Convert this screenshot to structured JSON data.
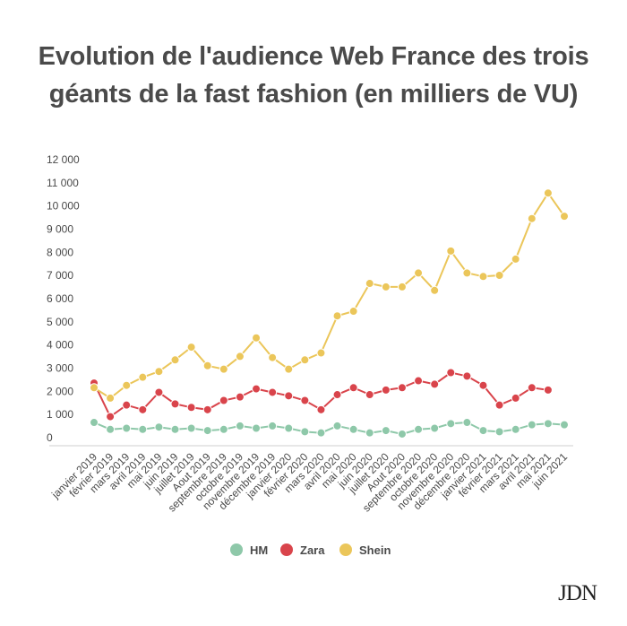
{
  "chart_data": {
    "type": "line",
    "title_lines": [
      "Evolution de l'audience Web France des trois",
      "géants de la fast fashion (en milliers de VU)"
    ],
    "categories": [
      "janvier 2019",
      "février 2019",
      "mars 2019",
      "avril 2019",
      "mai 2019",
      "juin 2019",
      "juillet 2019",
      "Aout 2019",
      "septembre 2019",
      "octobre 2019",
      "novembre 2019",
      "décembre 2019",
      "janvier 2020",
      "février 2020",
      "mars 2020",
      "avril 2020",
      "mai 2020",
      "juin 2020",
      "juillet 2020",
      "Aout 2020",
      "septembre 2020",
      "octobre 2020",
      "novembre 2020",
      "décembre 2020",
      "janvier 2021",
      "février 2021",
      "mars 2021",
      "avril 2021",
      "mai 2021",
      "juin 2021"
    ],
    "y_ticks": [
      "0",
      "1 000",
      "2 000",
      "3 000",
      "4 000",
      "5 000",
      "6 000",
      "7 000",
      "8 000",
      "9 000",
      "10 000",
      "11 000",
      "12 000"
    ],
    "ylim": [
      0,
      12000
    ],
    "grid": false,
    "legend_position": "bottom-center",
    "series": [
      {
        "name": "HM",
        "color": "#8ec8a9",
        "values": [
          850,
          550,
          600,
          550,
          650,
          550,
          600,
          500,
          550,
          700,
          600,
          700,
          600,
          450,
          400,
          700,
          550,
          400,
          500,
          350,
          550,
          600,
          800,
          850,
          500,
          450,
          550,
          750,
          800,
          750
        ]
      },
      {
        "name": "Zara",
        "color": "#d9444b",
        "values": [
          2550,
          1100,
          1600,
          1400,
          2150,
          1650,
          1500,
          1400,
          1800,
          1950,
          2300,
          2150,
          2000,
          1800,
          1400,
          2050,
          2350,
          2050,
          2250,
          2350,
          2650,
          2500,
          3000,
          2850,
          2450,
          1600,
          1900,
          2350,
          2250,
          null
        ]
      },
      {
        "name": "Shein",
        "color": "#ebc65a",
        "values": [
          2350,
          1900,
          2450,
          2800,
          3050,
          3550,
          4100,
          3300,
          3150,
          3700,
          4500,
          3650,
          3150,
          3550,
          3850,
          5450,
          5650,
          6850,
          6700,
          6700,
          7300,
          6550,
          8250,
          7300,
          7150,
          7200,
          7900,
          9650,
          10750,
          9750
        ]
      }
    ]
  },
  "footer": {
    "logo": "JDN"
  }
}
